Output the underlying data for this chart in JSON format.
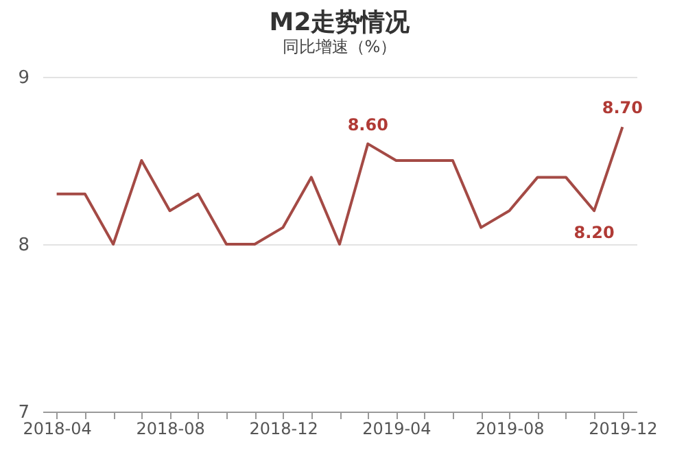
{
  "chart_data": {
    "type": "line",
    "title": "M2走势情况",
    "subtitle": "同比增速（%）",
    "categories": [
      "2018-04",
      null,
      null,
      null,
      "2018-08",
      null,
      null,
      null,
      "2018-12",
      null,
      null,
      null,
      "2019-04",
      null,
      null,
      null,
      "2019-08",
      null,
      null,
      null,
      "2019-12"
    ],
    "series": [
      {
        "color": "#a44a45",
        "values": [
          8.3,
          8.3,
          8.0,
          8.5,
          8.2,
          8.3,
          8.0,
          8.0,
          8.1,
          8.4,
          8.0,
          8.6,
          8.5,
          8.5,
          8.5,
          8.1,
          8.2,
          8.4,
          8.4,
          8.2,
          8.7
        ],
        "value_labels": [
          null,
          null,
          null,
          null,
          null,
          null,
          null,
          null,
          null,
          null,
          null,
          "8.60",
          null,
          null,
          null,
          null,
          null,
          null,
          null,
          "8.20",
          "8.70"
        ]
      }
    ],
    "ylim": [
      7,
      9
    ],
    "yticks": [
      7,
      8,
      9
    ],
    "grid": "y",
    "marker": "none",
    "line_style": "solid"
  }
}
